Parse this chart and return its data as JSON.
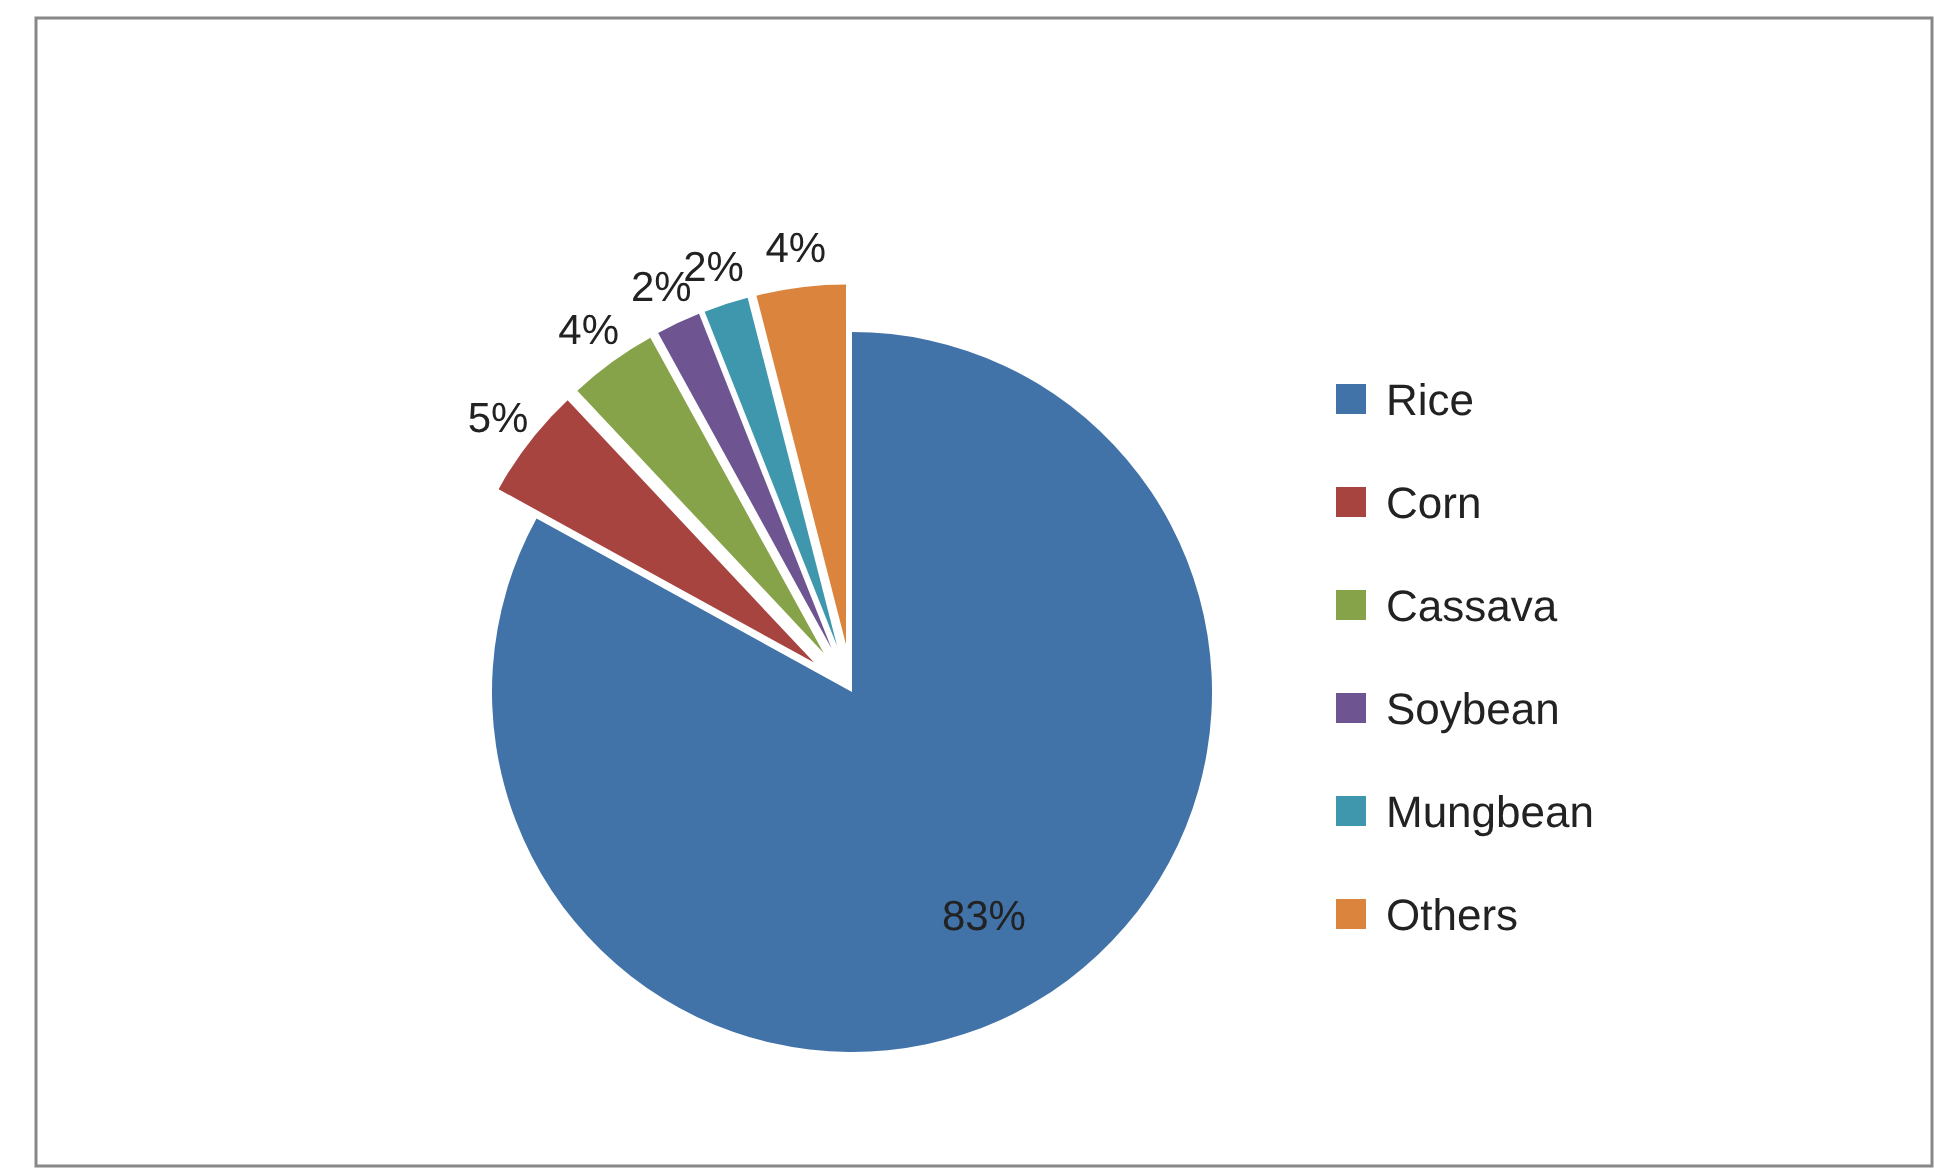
{
  "chart_data": {
    "type": "pie",
    "categories": [
      "Rice",
      "Corn",
      "Cassava",
      "Soybean",
      "Mungbean",
      "Others"
    ],
    "values": [
      83,
      5,
      4,
      2,
      2,
      4
    ],
    "colors": [
      "#4172a8",
      "#a84440",
      "#86a34a",
      "#6e5490",
      "#3f97ae",
      "#db843d"
    ],
    "value_labels": [
      "83%",
      "5%",
      "4%",
      "2%",
      "2%",
      "4%"
    ],
    "legend": "right"
  }
}
